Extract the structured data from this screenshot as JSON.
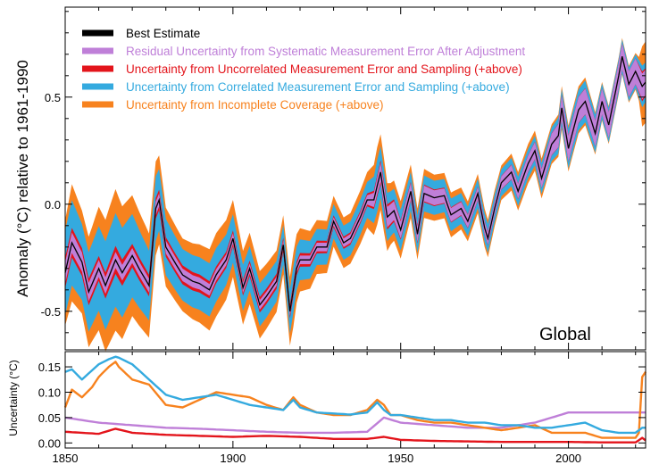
{
  "chart_data": [
    {
      "type": "area",
      "ylabel": "Anomaly (°C) relative to 1961-1990",
      "region_label": "Global",
      "xlim": [
        1850,
        2023
      ],
      "ylim": [
        -0.68,
        0.92
      ],
      "x_ticks": [
        "1850",
        "1900",
        "1950",
        "2000"
      ],
      "y_ticks": [
        "-0.5",
        "0.0",
        "0.5"
      ],
      "legend_position": "top-left",
      "legend": [
        {
          "label": "Best Estimate",
          "color": "#000000"
        },
        {
          "label": "Residual Uncertainty from Systematic Measurement Error After Adjustment",
          "color": "#bf7fd8"
        },
        {
          "label": "Uncertainty from Uncorrelated Measurement Error and Sampling (+above)",
          "color": "#e3141b"
        },
        {
          "label": "Uncertainty from Correlated Measurement Error and Sampling (+above)",
          "color": "#34aadf"
        },
        {
          "label": "Uncertainty from Incomplete Coverage (+above)",
          "color": "#f7821e"
        }
      ],
      "best_estimate": {
        "x": [
          1850,
          1852,
          1855,
          1857,
          1860,
          1862,
          1865,
          1867,
          1870,
          1872,
          1875,
          1877,
          1878,
          1880,
          1883,
          1885,
          1888,
          1890,
          1893,
          1895,
          1898,
          1900,
          1903,
          1905,
          1908,
          1910,
          1913,
          1915,
          1917,
          1919,
          1920,
          1923,
          1925,
          1928,
          1930,
          1933,
          1935,
          1938,
          1940,
          1942,
          1944,
          1946,
          1948,
          1950,
          1953,
          1955,
          1957,
          1960,
          1963,
          1965,
          1968,
          1970,
          1973,
          1975,
          1976,
          1978,
          1980,
          1983,
          1985,
          1988,
          1990,
          1992,
          1995,
          1997,
          1998,
          2000,
          2003,
          2005,
          2008,
          2010,
          2012,
          2015,
          2016,
          2018,
          2020,
          2022,
          2023
        ],
        "y": [
          -0.32,
          -0.18,
          -0.27,
          -0.41,
          -0.3,
          -0.38,
          -0.26,
          -0.32,
          -0.24,
          -0.3,
          -0.38,
          -0.02,
          0.02,
          -0.2,
          -0.28,
          -0.33,
          -0.36,
          -0.37,
          -0.4,
          -0.33,
          -0.26,
          -0.16,
          -0.39,
          -0.3,
          -0.47,
          -0.43,
          -0.36,
          -0.19,
          -0.5,
          -0.3,
          -0.26,
          -0.26,
          -0.2,
          -0.2,
          -0.08,
          -0.18,
          -0.16,
          -0.06,
          0.02,
          0.02,
          0.15,
          -0.06,
          -0.03,
          -0.12,
          0.06,
          -0.14,
          0.05,
          0.03,
          0.04,
          -0.05,
          -0.02,
          -0.08,
          0.05,
          -0.11,
          -0.16,
          -0.02,
          0.1,
          0.15,
          0.06,
          0.19,
          0.25,
          0.12,
          0.28,
          0.32,
          0.45,
          0.26,
          0.44,
          0.48,
          0.33,
          0.48,
          0.37,
          0.6,
          0.69,
          0.56,
          0.62,
          0.55,
          0.57
        ]
      },
      "uncertainty_series": [
        {
          "name": "Residual Uncertainty from Systematic Measurement Error After Adjustment",
          "color": "#bf7fd8",
          "x": [
            1850,
            1860,
            1870,
            1880,
            1890,
            1900,
            1910,
            1920,
            1930,
            1940,
            1945,
            1950,
            1960,
            1970,
            1980,
            1990,
            2000,
            2010,
            2020,
            2023
          ],
          "y": [
            0.05,
            0.04,
            0.035,
            0.03,
            0.028,
            0.025,
            0.022,
            0.02,
            0.02,
            0.022,
            0.05,
            0.04,
            0.035,
            0.03,
            0.03,
            0.04,
            0.06,
            0.06,
            0.06,
            0.06
          ]
        },
        {
          "name": "Uncertainty from Uncorrelated Measurement Error and Sampling (+above)",
          "color": "#e3141b",
          "x": [
            1850,
            1860,
            1865,
            1870,
            1880,
            1890,
            1900,
            1910,
            1920,
            1930,
            1940,
            1945,
            1950,
            1960,
            1970,
            1980,
            1990,
            2000,
            2010,
            2020,
            2022,
            2023
          ],
          "y": [
            0.022,
            0.018,
            0.028,
            0.02,
            0.016,
            0.014,
            0.012,
            0.014,
            0.012,
            0.008,
            0.008,
            0.012,
            0.006,
            0.004,
            0.003,
            0.002,
            0.002,
            0.002,
            0.001,
            0.001,
            0.01,
            0.005
          ]
        },
        {
          "name": "Uncertainty from Correlated Measurement Error and Sampling (+above)",
          "color": "#34aadf",
          "x": [
            1850,
            1852,
            1855,
            1860,
            1863,
            1865,
            1866,
            1870,
            1875,
            1880,
            1885,
            1890,
            1895,
            1900,
            1905,
            1910,
            1915,
            1918,
            1920,
            1925,
            1930,
            1935,
            1940,
            1943,
            1945,
            1947,
            1950,
            1955,
            1960,
            1965,
            1970,
            1975,
            1980,
            1985,
            1990,
            1995,
            2000,
            2005,
            2010,
            2015,
            2020,
            2022,
            2023
          ],
          "y": [
            0.14,
            0.145,
            0.125,
            0.155,
            0.165,
            0.17,
            0.168,
            0.155,
            0.125,
            0.095,
            0.085,
            0.09,
            0.095,
            0.085,
            0.075,
            0.07,
            0.065,
            0.085,
            0.07,
            0.06,
            0.058,
            0.056,
            0.06,
            0.08,
            0.065,
            0.055,
            0.055,
            0.05,
            0.045,
            0.045,
            0.04,
            0.04,
            0.035,
            0.035,
            0.03,
            0.03,
            0.035,
            0.04,
            0.025,
            0.02,
            0.02,
            0.03,
            0.03
          ]
        },
        {
          "name": "Uncertainty from Incomplete Coverage (+above)",
          "color": "#f7821e",
          "x": [
            1850,
            1852,
            1855,
            1858,
            1860,
            1863,
            1865,
            1866,
            1870,
            1875,
            1880,
            1885,
            1890,
            1895,
            1900,
            1905,
            1910,
            1915,
            1918,
            1920,
            1925,
            1930,
            1935,
            1940,
            1943,
            1945,
            1947,
            1950,
            1955,
            1960,
            1965,
            1970,
            1975,
            1980,
            1985,
            1990,
            1995,
            2000,
            2005,
            2010,
            2015,
            2020,
            2021,
            2022,
            2023
          ],
          "y": [
            0.07,
            0.105,
            0.09,
            0.11,
            0.13,
            0.15,
            0.16,
            0.15,
            0.125,
            0.115,
            0.075,
            0.07,
            0.085,
            0.1,
            0.095,
            0.09,
            0.075,
            0.065,
            0.09,
            0.075,
            0.06,
            0.055,
            0.055,
            0.065,
            0.085,
            0.075,
            0.055,
            0.055,
            0.045,
            0.04,
            0.04,
            0.035,
            0.03,
            0.025,
            0.03,
            0.035,
            0.02,
            0.02,
            0.02,
            0.01,
            0.01,
            0.01,
            0.02,
            0.13,
            0.14
          ]
        }
      ]
    },
    {
      "type": "line",
      "ylabel": "Uncertainty (°C)",
      "xlim": [
        1850,
        2023
      ],
      "ylim": [
        -0.01,
        0.18
      ],
      "x_ticks": [
        "1850",
        "1900",
        "1950",
        "2000"
      ],
      "y_ticks": [
        "0.00",
        "0.05",
        "0.10",
        "0.15"
      ],
      "grid": false
    }
  ]
}
